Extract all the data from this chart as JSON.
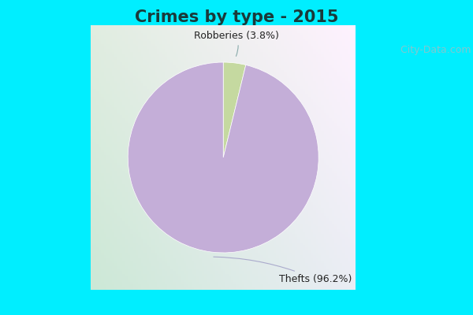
{
  "title": "Crimes by type - 2015",
  "slices": [
    {
      "label": "Robberies (3.8%)",
      "value": 3.8,
      "color": "#c5d9a0"
    },
    {
      "label": "Thefts (96.2%)",
      "value": 96.2,
      "color": "#c4aed8"
    }
  ],
  "background_top": "#00eeff",
  "background_main_tl": "#cce8cc",
  "background_main_tr": "#e8f4f0",
  "title_fontsize": 15,
  "label_fontsize": 9,
  "watermark": " City-Data.com"
}
